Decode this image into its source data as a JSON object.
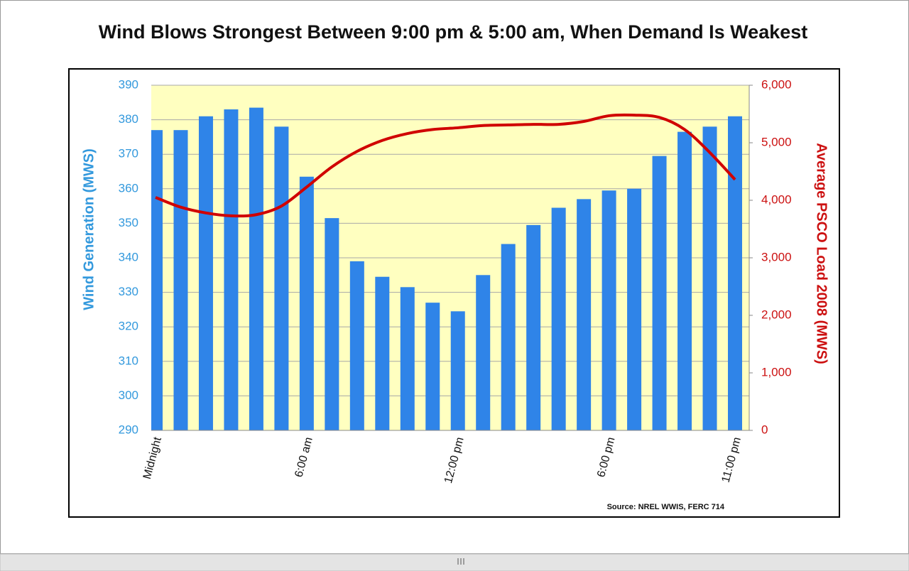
{
  "chart_data": {
    "type": "bar",
    "title": "Wind Blows Strongest Between 9:00 pm & 5:00 am, When Demand Is Weakest",
    "ylabel": "Wind Generation (MWS)",
    "y2label": "Average PSCO Load 2008 (MWS)",
    "source": "Source: NREL WWIS, FERC 714",
    "categories": [
      "Midnight",
      null,
      null,
      null,
      null,
      null,
      "6:00 am",
      null,
      null,
      null,
      null,
      null,
      "12:00 pm",
      null,
      null,
      null,
      null,
      null,
      "6:00 pm",
      null,
      null,
      null,
      null,
      "11:00 pm"
    ],
    "series": [
      {
        "color": "#2f84e8",
        "values": [
          377,
          377,
          381,
          383,
          383.5,
          378,
          363.5,
          351.5,
          339,
          334.5,
          331.5,
          327,
          324.5,
          335,
          344,
          349.5,
          354.5,
          357,
          359.5,
          360,
          369.5,
          376.5,
          378,
          381
        ]
      },
      {
        "type": "line",
        "axis": "y2",
        "color": "#d00000",
        "values": [
          4050,
          3880,
          3780,
          3730,
          3750,
          3900,
          4230,
          4580,
          4850,
          5040,
          5160,
          5230,
          5260,
          5300,
          5310,
          5320,
          5320,
          5370,
          5470,
          5480,
          5440,
          5230,
          4830,
          4360
        ]
      }
    ],
    "ylim": [
      290,
      390
    ],
    "yticks": [
      290,
      300,
      310,
      320,
      330,
      340,
      350,
      360,
      370,
      380,
      390
    ],
    "y2lim": [
      0,
      6000
    ],
    "y2ticks": [
      0,
      {
        "value": 1000,
        "label": "1,000"
      },
      {
        "value": 2000,
        "label": "2,000"
      },
      {
        "value": 3000,
        "label": "3,000"
      },
      {
        "value": 4000,
        "label": "4,000"
      },
      {
        "value": 5000,
        "label": "5,000"
      },
      {
        "value": 6000,
        "label": "6,000"
      }
    ],
    "grid": true,
    "plot_background": "#ffffc0"
  }
}
